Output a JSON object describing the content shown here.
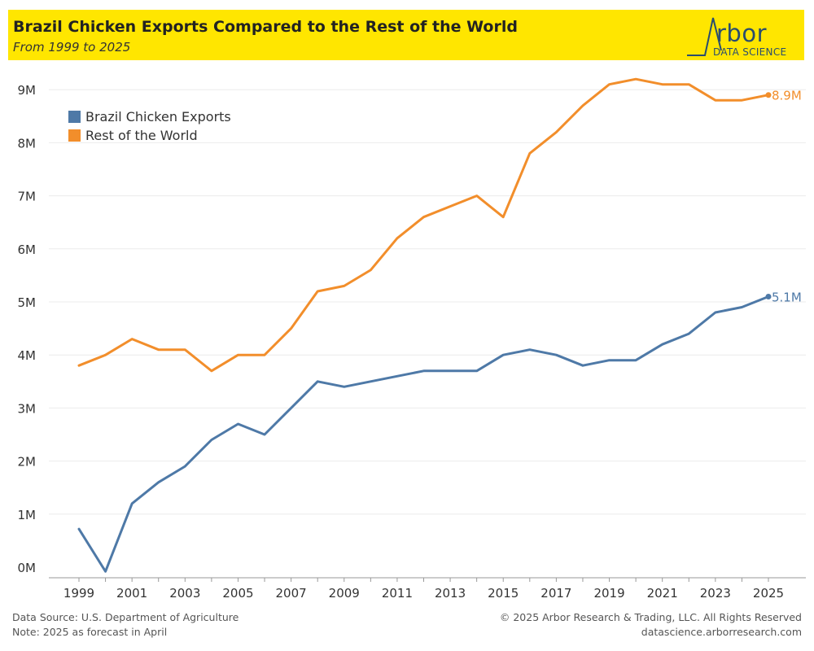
{
  "header": {
    "title": "Brazil Chicken Exports Compared to the Rest of the World",
    "subtitle": "From 1999 to 2025"
  },
  "logo": {
    "word": "rbor",
    "sub": "DATA SCIENCE"
  },
  "footer": {
    "source": "Data Source: U.S. Department of Agriculture",
    "note": "Note: 2025 as forecast in April",
    "copyright": "© 2025 Arbor Research & Trading, LLC. All Rights Reserved",
    "url": "datascience.arborresearch.com"
  },
  "colors": {
    "brazil": "#4e79a7",
    "rest": "#f28e2b",
    "header_bg": "#ffe600",
    "grid": "#ececec"
  },
  "chart_data": {
    "type": "line",
    "x": [
      1999,
      2000,
      2001,
      2002,
      2003,
      2004,
      2005,
      2006,
      2007,
      2008,
      2009,
      2010,
      2011,
      2012,
      2013,
      2014,
      2015,
      2016,
      2017,
      2018,
      2019,
      2020,
      2021,
      2022,
      2023,
      2024,
      2025
    ],
    "xticks": [
      "1999",
      "2001",
      "2003",
      "2005",
      "2007",
      "2009",
      "2011",
      "2013",
      "2015",
      "2017",
      "2019",
      "2021",
      "2023",
      "2025"
    ],
    "yticks": [
      "0M",
      "1M",
      "2M",
      "3M",
      "4M",
      "5M",
      "6M",
      "7M",
      "8M",
      "9M"
    ],
    "ylim": [
      -0.1,
      9.5
    ],
    "grid": true,
    "legend_position": "top-left",
    "series": [
      {
        "name": "Brazil Chicken Exports",
        "color": "#4e79a7",
        "end_label": "5.1M",
        "values": [
          0.72,
          -0.08,
          1.2,
          1.6,
          1.9,
          2.4,
          2.7,
          2.5,
          3.0,
          3.5,
          3.4,
          3.5,
          3.6,
          3.7,
          3.7,
          3.7,
          4.0,
          4.1,
          4.0,
          3.8,
          3.9,
          3.9,
          4.2,
          4.4,
          4.8,
          4.9,
          5.1
        ]
      },
      {
        "name": "Rest of the World",
        "color": "#f28e2b",
        "end_label": "8.9M",
        "values": [
          3.8,
          4.0,
          4.3,
          4.1,
          4.1,
          3.7,
          4.0,
          4.0,
          4.5,
          5.2,
          5.3,
          5.6,
          6.2,
          6.6,
          6.8,
          7.0,
          6.6,
          7.8,
          8.2,
          8.7,
          9.1,
          9.2,
          9.1,
          9.1,
          8.8,
          8.8,
          8.9
        ]
      }
    ]
  }
}
